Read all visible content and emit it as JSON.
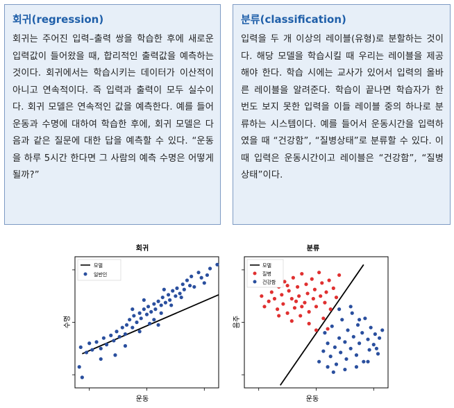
{
  "regression_box": {
    "title": "회귀(regression)",
    "body": "회귀는 주어진 입력–출력 쌍을 학습한 후에 새로운 입력값이 들어왔을 때, 합리적인 출력값을 예측하는 것이다. 회귀에서는 학습시키는 데이터가 이산적이 아니고 연속적이다. 즉 입력과 출력이 모두 실수이다. 회귀 모델은 연속적인 값을 예측한다. 예를 들어 운동과 수명에 대하여 학습한 후에, 회귀 모델은 다음과 같은 질문에 대한 답을 예측할 수 있다. “운동을 하루 5시간 한다면 그 사람의 예측 수명은 어떻게 될까?”"
  },
  "classification_box": {
    "title": "분류(classification)",
    "body": "입력을 두 개 이상의 레이블(유형)로 분할하는 것이다. 해당 모델을 학습시킬 때 우리는 레이블을 제공해야 한다. 학습 시에는 교사가 있어서 입력의 올바른 레이블을 알려준다. 학습이 끝나면 학습자가 한 번도 보지 못한 입력을 이들 레이블 중의 하나로 분류하는 시스템이다. 예를 들어서 운동시간을 입력하였을 때 “건강함”, “질병상태”로 분류할 수 있다. 이때 입력은 운동시간이고 레이블은 “건강함”, “질병상태”이다."
  },
  "chart_data": [
    {
      "type": "scatter",
      "title": "회귀",
      "xlabel": "운동",
      "ylabel": "수명",
      "xlim": [
        0,
        100
      ],
      "ylim": [
        0,
        100
      ],
      "legend": {
        "placement": "top-left",
        "entries": [
          "모델",
          "일반인"
        ]
      },
      "colors": {
        "model": "#000000",
        "points": "#2a4f9e"
      },
      "line": [
        [
          5,
          26
        ],
        [
          100,
          71
        ]
      ],
      "series": [
        {
          "name": "일반인",
          "points": [
            [
              99,
              94
            ],
            [
              5,
              8
            ],
            [
              3,
              16
            ],
            [
              4,
              31
            ],
            [
              8,
              27
            ],
            [
              12,
              29
            ],
            [
              10,
              34
            ],
            [
              15,
              35
            ],
            [
              18,
              30
            ],
            [
              20,
              38
            ],
            [
              22,
              33
            ],
            [
              25,
              40
            ],
            [
              27,
              36
            ],
            [
              29,
              43
            ],
            [
              31,
              39
            ],
            [
              33,
              46
            ],
            [
              35,
              41
            ],
            [
              36,
              48
            ],
            [
              38,
              52
            ],
            [
              40,
              46
            ],
            [
              41,
              55
            ],
            [
              43,
              50
            ],
            [
              45,
              57
            ],
            [
              46,
              53
            ],
            [
              48,
              60
            ],
            [
              50,
              56
            ],
            [
              51,
              62
            ],
            [
              53,
              58
            ],
            [
              55,
              64
            ],
            [
              56,
              60
            ],
            [
              58,
              66
            ],
            [
              60,
              63
            ],
            [
              61,
              69
            ],
            [
              63,
              65
            ],
            [
              65,
              71
            ],
            [
              66,
              67
            ],
            [
              68,
              74
            ],
            [
              70,
              70
            ],
            [
              71,
              76
            ],
            [
              73,
              72
            ],
            [
              75,
              79
            ],
            [
              76,
              75
            ],
            [
              78,
              82
            ],
            [
              80,
              78
            ],
            [
              81,
              85
            ],
            [
              83,
              77
            ],
            [
              86,
              88
            ],
            [
              88,
              84
            ],
            [
              90,
              80
            ],
            [
              92,
              86
            ],
            [
              94,
              91
            ],
            [
              45,
              43
            ],
            [
              52,
              49
            ],
            [
              60,
              57
            ],
            [
              67,
              63
            ],
            [
              74,
              69
            ],
            [
              55,
              52
            ],
            [
              62,
              75
            ],
            [
              48,
              67
            ],
            [
              35,
              32
            ],
            [
              28,
              25
            ],
            [
              18,
              22
            ],
            [
              40,
              60
            ],
            [
              58,
              48
            ]
          ]
        }
      ]
    },
    {
      "type": "scatter",
      "title": "분류",
      "xlabel": "운동",
      "ylabel": "음주",
      "xlim": [
        0,
        100
      ],
      "ylim": [
        0,
        100
      ],
      "legend": {
        "placement": "top-left",
        "entries": [
          "모델",
          "질병",
          "건강함"
        ]
      },
      "colors": {
        "model": "#000000",
        "disease": "#e03030",
        "healthy": "#2a4f9e"
      },
      "line": [
        [
          25,
          2
        ],
        [
          83,
          94
        ]
      ],
      "series": [
        {
          "name": "질병",
          "points": [
            [
              12,
              70
            ],
            [
              14,
              62
            ],
            [
              17,
              66
            ],
            [
              19,
              73
            ],
            [
              21,
              68
            ],
            [
              23,
              60
            ],
            [
              24,
              77
            ],
            [
              26,
              71
            ],
            [
              27,
              64
            ],
            [
              28,
              81
            ],
            [
              30,
              57
            ],
            [
              31,
              74
            ],
            [
              33,
              68
            ],
            [
              34,
              84
            ],
            [
              35,
              61
            ],
            [
              37,
              77
            ],
            [
              38,
              70
            ],
            [
              39,
              55
            ],
            [
              40,
              87
            ],
            [
              42,
              65
            ],
            [
              43,
              79
            ],
            [
              44,
              72
            ],
            [
              45,
              58
            ],
            [
              47,
              83
            ],
            [
              48,
              68
            ],
            [
              49,
              75
            ],
            [
              50,
              62
            ],
            [
              52,
              88
            ],
            [
              53,
              70
            ],
            [
              54,
              80
            ],
            [
              56,
              65
            ],
            [
              57,
              73
            ],
            [
              59,
              82
            ],
            [
              60,
              60
            ],
            [
              62,
              76
            ],
            [
              64,
              69
            ],
            [
              66,
              86
            ],
            [
              33,
              51
            ],
            [
              45,
              49
            ],
            [
              55,
              53
            ],
            [
              24,
              55
            ],
            [
              40,
              62
            ],
            [
              50,
              44
            ],
            [
              58,
              45
            ],
            [
              30,
              78
            ],
            [
              36,
              66
            ]
          ]
        },
        {
          "name": "건강함",
          "points": [
            [
              52,
              20
            ],
            [
              55,
              28
            ],
            [
              56,
              42
            ],
            [
              58,
              34
            ],
            [
              60,
              24
            ],
            [
              61,
              47
            ],
            [
              63,
              31
            ],
            [
              64,
              18
            ],
            [
              66,
              38
            ],
            [
              67,
              27
            ],
            [
              68,
              52
            ],
            [
              70,
              35
            ],
            [
              71,
              22
            ],
            [
              72,
              44
            ],
            [
              74,
              30
            ],
            [
              75,
              57
            ],
            [
              76,
              39
            ],
            [
              78,
              25
            ],
            [
              79,
              48
            ],
            [
              80,
              34
            ],
            [
              82,
              42
            ],
            [
              83,
              20
            ],
            [
              84,
              53
            ],
            [
              86,
              37
            ],
            [
              87,
              29
            ],
            [
              88,
              46
            ],
            [
              90,
              33
            ],
            [
              91,
              41
            ],
            [
              93,
              26
            ],
            [
              94,
              38
            ],
            [
              96,
              44
            ],
            [
              62,
              12
            ],
            [
              70,
              14
            ],
            [
              78,
              16
            ],
            [
              66,
              60
            ],
            [
              74,
              62
            ],
            [
              80,
              52
            ],
            [
              86,
              20
            ],
            [
              92,
              30
            ],
            [
              58,
              16
            ]
          ]
        }
      ]
    }
  ]
}
